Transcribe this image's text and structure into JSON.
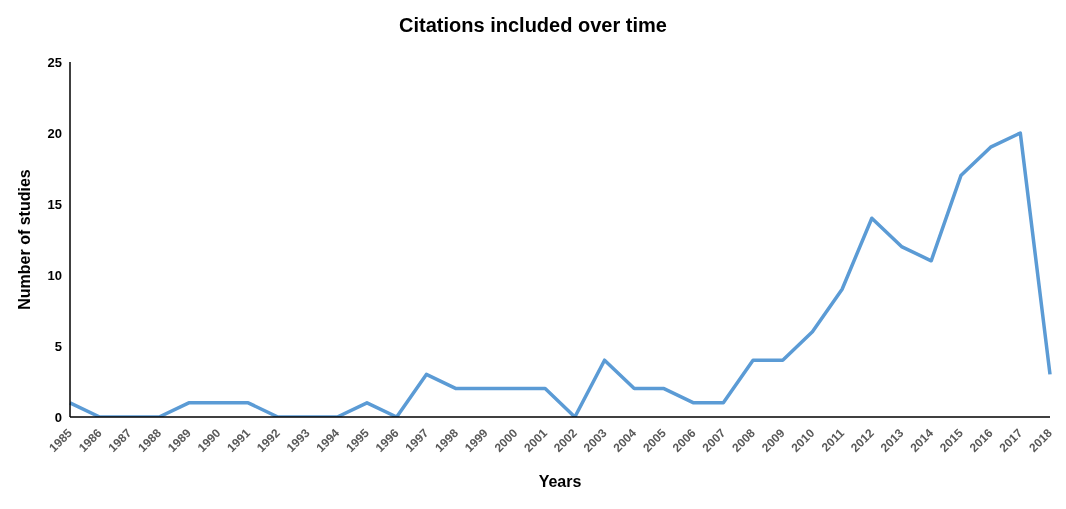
{
  "chart_data": {
    "type": "line",
    "title": "Citations included over time",
    "xlabel": "Years",
    "ylabel": "Number of studies",
    "categories": [
      "1985",
      "1986",
      "1987",
      "1988",
      "1989",
      "1990",
      "1991",
      "1992",
      "1993",
      "1994",
      "1995",
      "1996",
      "1997",
      "1998",
      "1999",
      "2000",
      "2001",
      "2002",
      "2003",
      "2004",
      "2005",
      "2006",
      "2007",
      "2008",
      "2009",
      "2010",
      "2011",
      "2012",
      "2013",
      "2014",
      "2015",
      "2016",
      "2017",
      "2018"
    ],
    "series": [
      {
        "color": "#5b9bd5",
        "values": [
          1,
          0,
          0,
          0,
          1,
          1,
          1,
          0,
          0,
          0,
          1,
          0,
          3,
          2,
          2,
          2,
          2,
          0,
          4,
          2,
          2,
          1,
          1,
          4,
          4,
          6,
          9,
          14,
          12,
          11,
          17,
          19,
          20,
          3
        ]
      }
    ],
    "ylim": [
      0,
      25
    ],
    "yticks": [
      0,
      5,
      10,
      15,
      20,
      25
    ],
    "grid": false,
    "legend": false,
    "marker": "none",
    "line_style": "solid"
  }
}
